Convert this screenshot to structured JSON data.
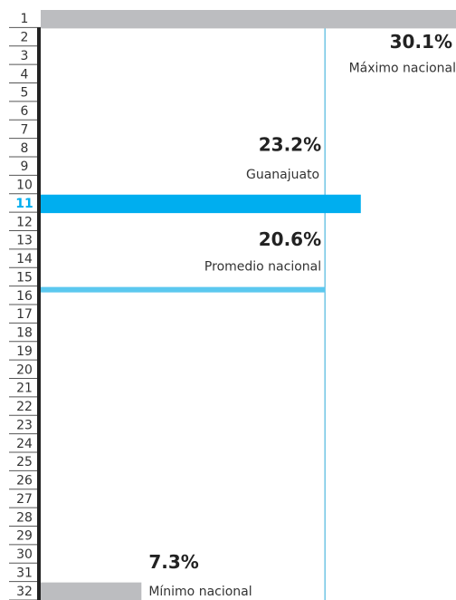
{
  "chart_data": {
    "type": "bar",
    "categories": [
      "1",
      "2",
      "3",
      "4",
      "5",
      "6",
      "7",
      "8",
      "9",
      "10",
      "11",
      "12",
      "13",
      "14",
      "15",
      "16",
      "17",
      "18",
      "19",
      "20",
      "21",
      "22",
      "23",
      "24",
      "25",
      "26",
      "27",
      "28",
      "29",
      "30",
      "31",
      "32"
    ],
    "values": [
      30.1,
      null,
      null,
      null,
      null,
      null,
      null,
      null,
      null,
      null,
      23.2,
      null,
      null,
      null,
      null,
      null,
      null,
      null,
      null,
      null,
      null,
      null,
      null,
      null,
      null,
      null,
      null,
      null,
      null,
      null,
      null,
      7.3
    ],
    "value_labels": [
      "30.1%",
      null,
      null,
      null,
      null,
      null,
      null,
      null,
      null,
      null,
      "23.2%",
      null,
      null,
      null,
      null,
      null,
      null,
      null,
      null,
      null,
      null,
      null,
      null,
      null,
      null,
      null,
      null,
      null,
      null,
      null,
      null,
      "7.3%"
    ],
    "bar_labels": [
      "Máximo nacional",
      null,
      null,
      null,
      null,
      null,
      null,
      null,
      null,
      null,
      "Guanajuato",
      null,
      null,
      null,
      null,
      null,
      null,
      null,
      null,
      null,
      null,
      null,
      null,
      null,
      null,
      null,
      null,
      null,
      null,
      null,
      null,
      "Mínimo nacional"
    ],
    "colors": [
      "#bcbdc0",
      null,
      null,
      null,
      null,
      null,
      null,
      null,
      null,
      null,
      "#00aeef",
      null,
      null,
      null,
      null,
      null,
      null,
      null,
      null,
      null,
      null,
      null,
      null,
      null,
      null,
      null,
      null,
      null,
      null,
      null,
      null,
      "#bcbdc0"
    ],
    "highlight_color": "#00aeef",
    "average": {
      "value": 20.6,
      "value_label": "20.6%",
      "label": "Promedio nacional",
      "color": "#5bc8ef",
      "line_color": "#2aa8d8"
    },
    "xlim": [
      0,
      30.1
    ]
  }
}
